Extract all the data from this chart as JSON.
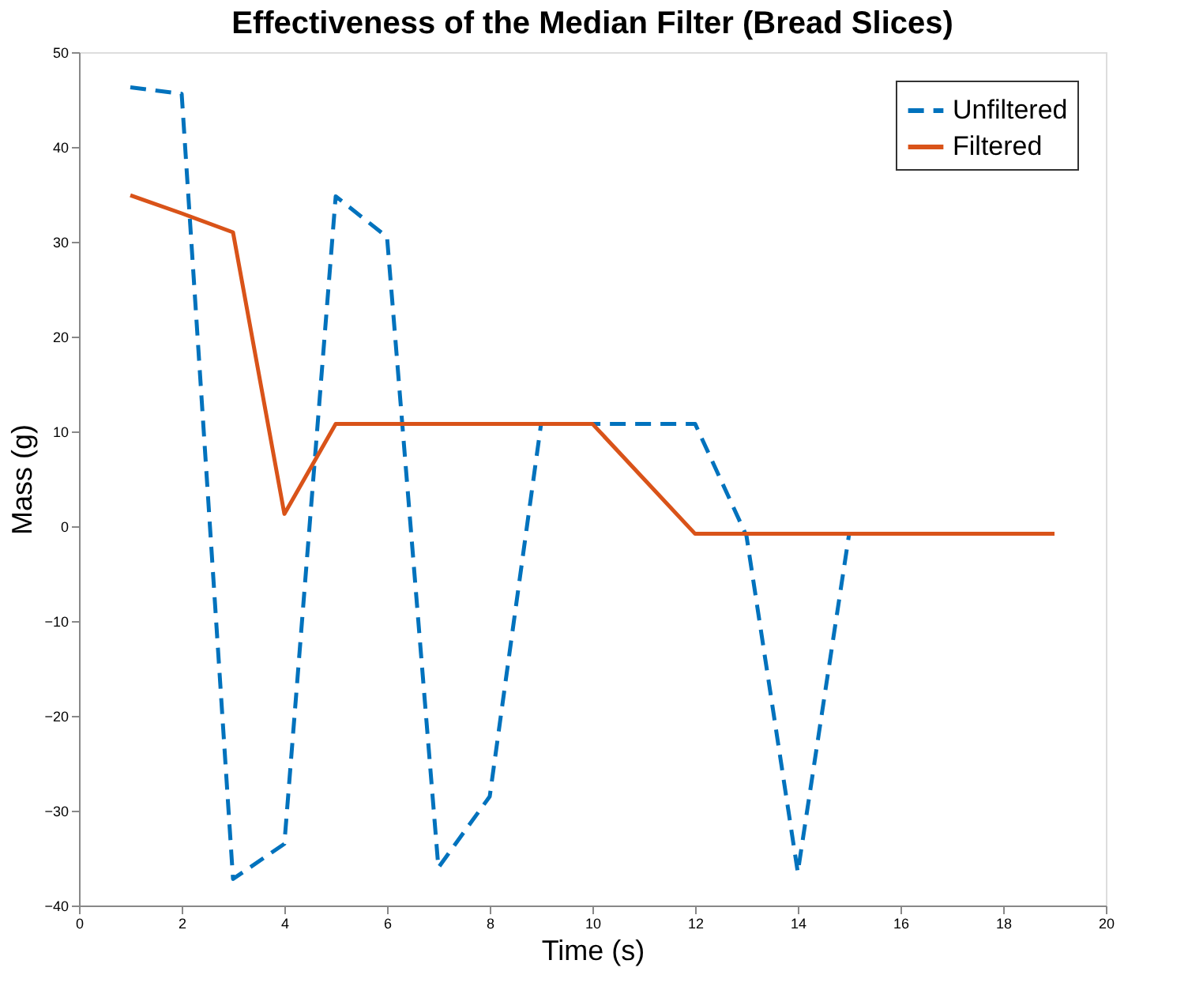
{
  "chart_data": {
    "type": "line",
    "title": "Effectiveness of the Median Filter (Bread Slices)",
    "xlabel": "Time (s)",
    "ylabel": "Mass (g)",
    "x": [
      1,
      2,
      3,
      4,
      5,
      6,
      7,
      8,
      9,
      10,
      11,
      12,
      13,
      14,
      15,
      16,
      17,
      18,
      19
    ],
    "series": [
      {
        "name": "Unfiltered",
        "color": "#0072bd",
        "line_style": "dashed",
        "values": [
          46.3,
          45.6,
          -37.2,
          -33.5,
          34.8,
          30.5,
          -36,
          -28.5,
          10.8,
          10.8,
          10.8,
          10.8,
          -1,
          -36.5,
          -0.8,
          null,
          null,
          null,
          null
        ]
      },
      {
        "name": "Filtered",
        "color": "#d95319",
        "line_style": "solid",
        "values": [
          34.9,
          33,
          31,
          1.3,
          10.8,
          10.8,
          10.8,
          10.8,
          10.8,
          10.8,
          5,
          -0.8,
          -0.8,
          -0.8,
          -0.8,
          -0.8,
          -0.8,
          -0.8,
          -0.8
        ]
      }
    ],
    "xlim": [
      0,
      20
    ],
    "xticks": [
      0,
      2,
      4,
      6,
      8,
      10,
      12,
      14,
      16,
      18,
      20
    ],
    "ylim": [
      -40,
      50
    ],
    "yticks": [
      -40,
      -30,
      -20,
      -10,
      0,
      10,
      20,
      30,
      40,
      50
    ],
    "grid": false,
    "legend": "top right",
    "marker": "none"
  }
}
